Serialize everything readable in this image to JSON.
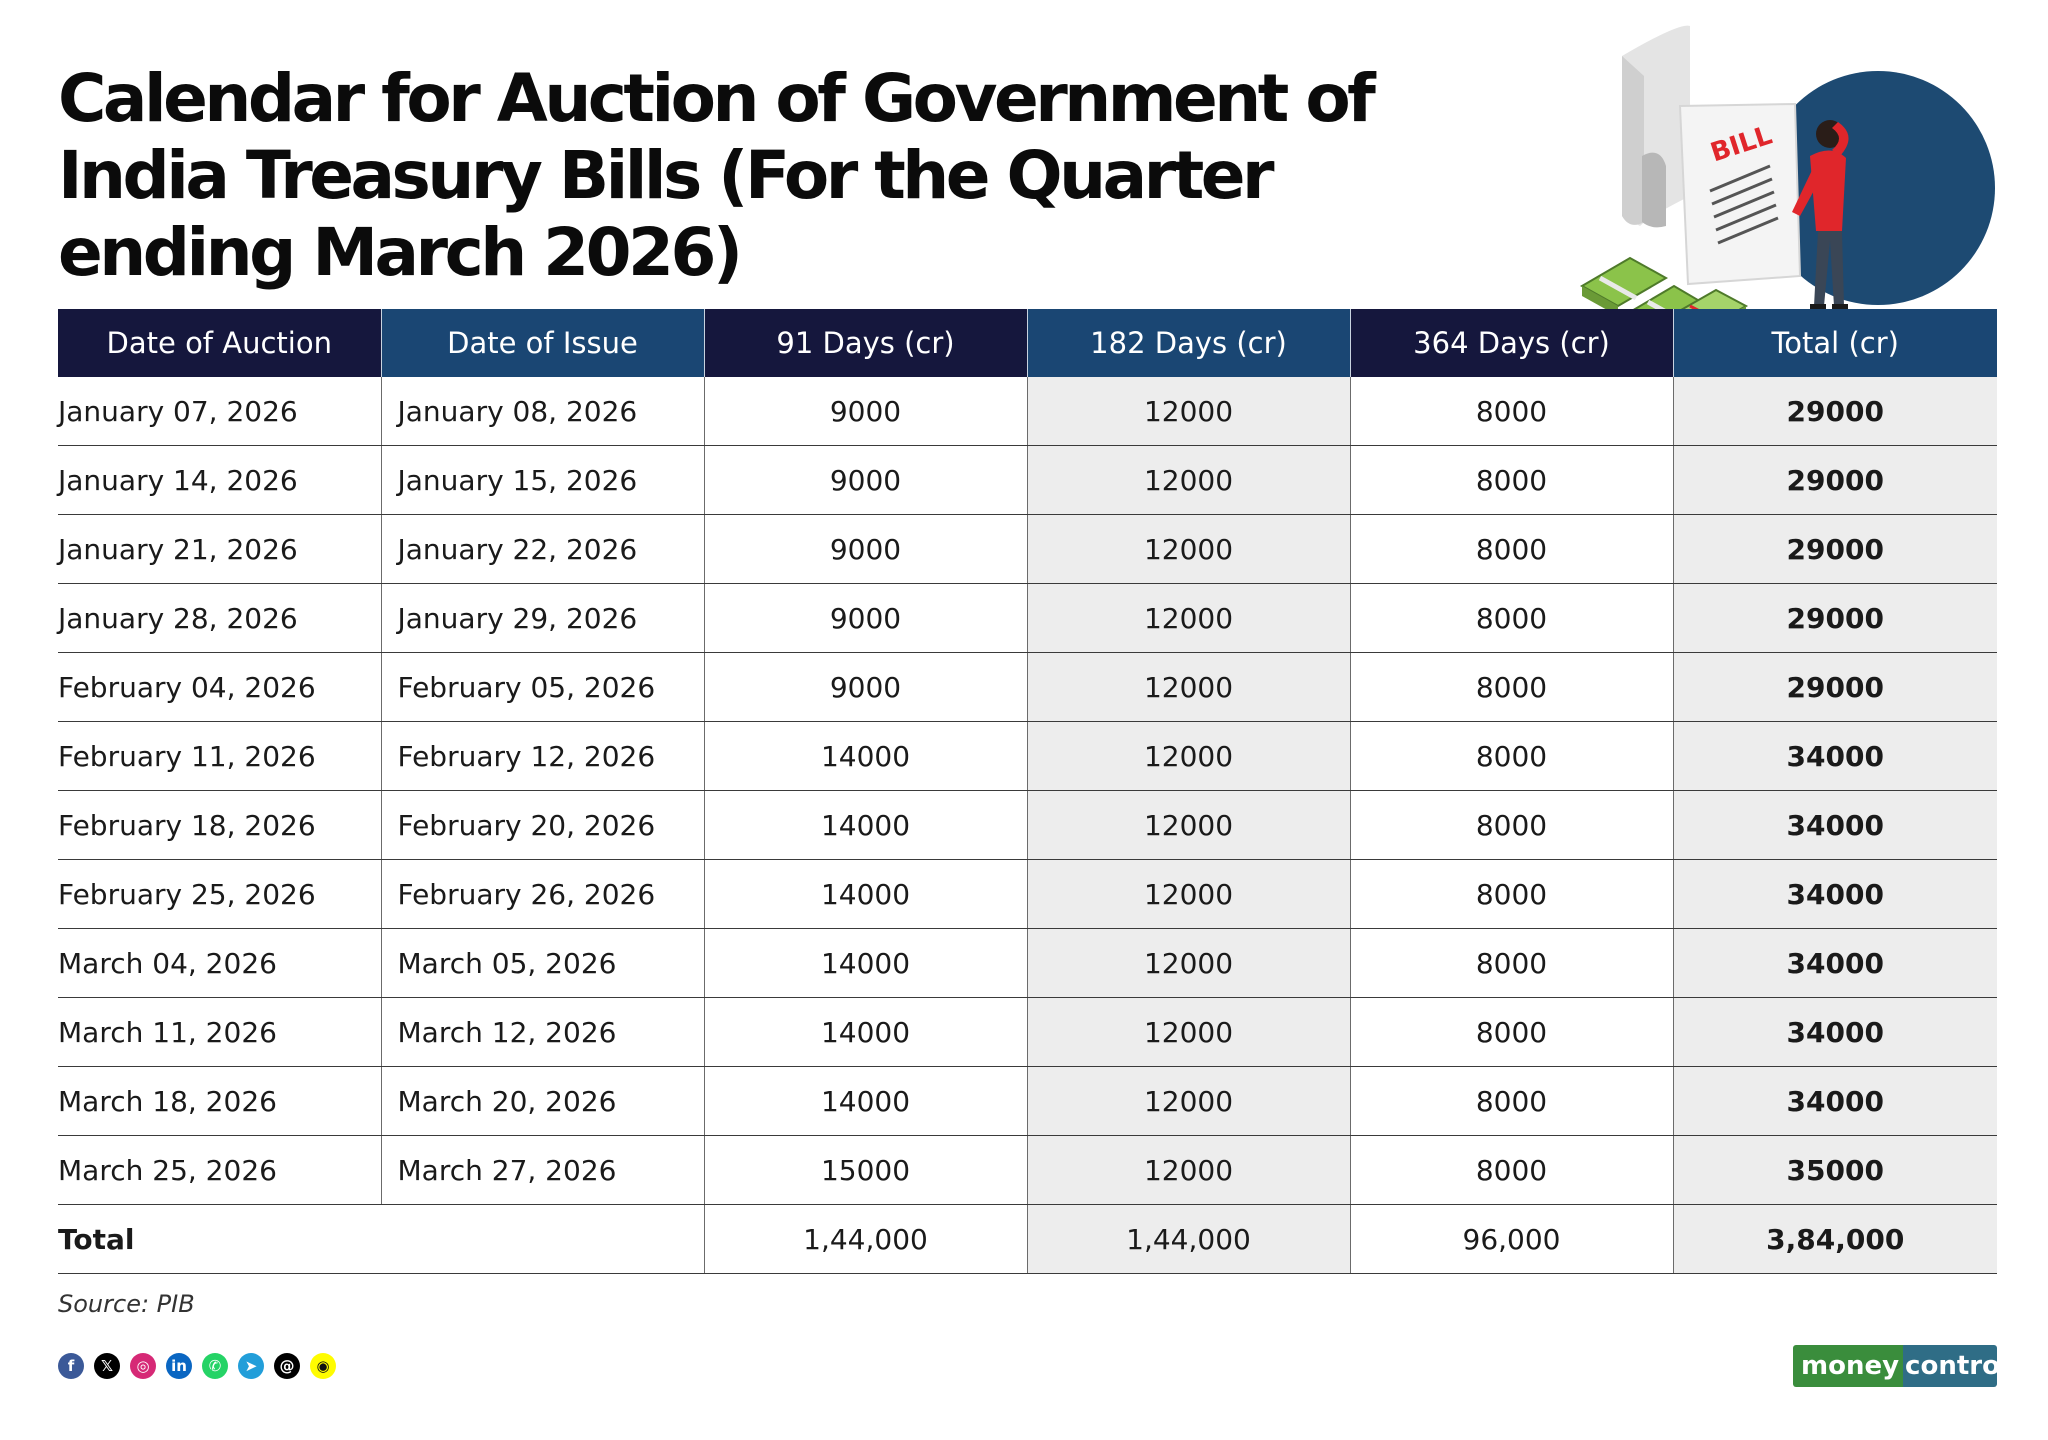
{
  "title": "Calendar for Auction of Government of India Treasury Bills (For the Quarter ending March 2026)",
  "illustration": {
    "bill_text": "BILL"
  },
  "table": {
    "headers": [
      "Date of Auction",
      "Date of Issue",
      "91 Days (cr)",
      "182 Days (cr)",
      "364 Days (cr)",
      "Total (cr)"
    ],
    "rows": [
      [
        "January 07, 2026",
        "January 08, 2026",
        "9000",
        "12000",
        "8000",
        "29000"
      ],
      [
        "January 14, 2026",
        "January 15, 2026",
        "9000",
        "12000",
        "8000",
        "29000"
      ],
      [
        "January 21, 2026",
        "January 22, 2026",
        "9000",
        "12000",
        "8000",
        "29000"
      ],
      [
        "January 28, 2026",
        "January 29, 2026",
        "9000",
        "12000",
        "8000",
        "29000"
      ],
      [
        "February 04, 2026",
        "February 05, 2026",
        "9000",
        "12000",
        "8000",
        "29000"
      ],
      [
        "February 11, 2026",
        "February 12, 2026",
        "14000",
        "12000",
        "8000",
        "34000"
      ],
      [
        "February 18, 2026",
        "February 20, 2026",
        "14000",
        "12000",
        "8000",
        "34000"
      ],
      [
        "February 25, 2026",
        "February 26, 2026",
        "14000",
        "12000",
        "8000",
        "34000"
      ],
      [
        "March 04, 2026",
        "March 05, 2026",
        "14000",
        "12000",
        "8000",
        "34000"
      ],
      [
        "March 11, 2026",
        "March 12, 2026",
        "14000",
        "12000",
        "8000",
        "34000"
      ],
      [
        "March 18, 2026",
        "March 20, 2026",
        "14000",
        "12000",
        "8000",
        "34000"
      ],
      [
        "March 25, 2026",
        "March 27, 2026",
        "15000",
        "12000",
        "8000",
        "35000"
      ]
    ],
    "total_row": {
      "label": "Total",
      "d91": "1,44,000",
      "d182": "1,44,000",
      "d364": "96,000",
      "total": "3,84,000"
    }
  },
  "source": "Source: PIB",
  "social_icons": [
    {
      "name": "facebook-icon",
      "glyph": "f",
      "color": "#3b5998"
    },
    {
      "name": "x-icon",
      "glyph": "𝕏",
      "color": "#000000"
    },
    {
      "name": "instagram-icon",
      "glyph": "◎",
      "color": "#d62976"
    },
    {
      "name": "linkedin-icon",
      "glyph": "in",
      "color": "#0a66c2"
    },
    {
      "name": "whatsapp-icon",
      "glyph": "✆",
      "color": "#25d366"
    },
    {
      "name": "telegram-icon",
      "glyph": "➤",
      "color": "#229ed9"
    },
    {
      "name": "threads-icon",
      "glyph": "@",
      "color": "#000000"
    },
    {
      "name": "snapchat-icon",
      "glyph": "◉",
      "color": "#fffc00"
    }
  ],
  "logo": {
    "part1": "money",
    "part2": "control"
  },
  "colors": {
    "header_dark": "#15173d",
    "header_blue": "#1a4673",
    "shade": "#ededed",
    "circle": "#1d4a72",
    "person_shirt": "#e0262b"
  }
}
